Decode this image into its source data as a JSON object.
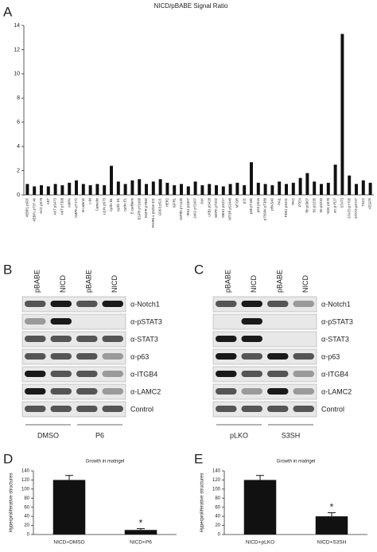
{
  "chart_data": [
    {
      "type": "bar",
      "label": "A",
      "title": "NICD/pBABE Signal Ratio",
      "color": "#111111",
      "categories": [
        "4EBP1 pS65",
        "4EBP1 pT37 46",
        "ACC pS79",
        "AKT",
        "AKT pS473",
        "AKT pT308",
        "AMPK",
        "AMPK pT172",
        "B-catenin",
        "c-kit",
        "Caveolin",
        "cJUN pS73",
        "cyclin B1",
        "cyclin D1",
        "cyclin E1",
        "E-cadherin",
        "EGFR pY1068",
        "EGFR pY992",
        "FKHRL1 pS318 321",
        "GSK3 pS21",
        "HER2",
        "IGFR1",
        "IGFRb pY1135",
        "IRS1 pS307",
        "JAK2 pY1007",
        "JNK",
        "LKB1 pS428",
        "MAPK pT202",
        "MEK1 pS217",
        "MTOR pS2448",
        "MTOR",
        "p21",
        "p38 pT180",
        "p53 pS15",
        "p70S6K pT389",
        "pRAS40",
        "PAI1",
        "PDK1 pS241",
        "PKC",
        "PTEN",
        "Rb pS807",
        "S6 pS235",
        "S6 pS240",
        "SGK pS78",
        "src pY527",
        "STAT3",
        "STAT3 pY705",
        "STAT3 pS727",
        "TSC2",
        "VEGFR"
      ],
      "values": [
        0.9,
        0.7,
        0.8,
        0.7,
        0.9,
        0.8,
        1.0,
        1.2,
        0.9,
        0.8,
        0.9,
        0.8,
        2.4,
        1.1,
        0.9,
        1.2,
        1.3,
        0.9,
        1.1,
        1.3,
        1.0,
        0.8,
        0.9,
        0.7,
        1.1,
        0.8,
        0.9,
        0.8,
        0.7,
        0.9,
        1.0,
        0.8,
        2.7,
        1.0,
        0.9,
        0.8,
        1.1,
        0.9,
        1.0,
        1.4,
        1.8,
        1.1,
        0.9,
        1.0,
        2.5,
        13.3,
        1.6,
        0.9,
        1.2,
        1.0
      ],
      "ylim": [
        0,
        14
      ],
      "yticks": [
        0,
        2,
        4,
        6,
        8,
        10,
        12,
        14
      ]
    },
    {
      "type": "bar",
      "label": "D",
      "title": "Growth in matrigel",
      "y_label": "Hyperproliferative structures",
      "color": "#111111",
      "categories": [
        "NICD+DMSO",
        "NICD+P6"
      ],
      "values": [
        120,
        10
      ],
      "errors": [
        10,
        3
      ],
      "annotation": "*",
      "ylim": [
        0,
        140
      ],
      "yticks": [
        0,
        20,
        40,
        60,
        80,
        100,
        120,
        140
      ]
    },
    {
      "type": "bar",
      "label": "E",
      "title": "Growth in matrigel",
      "y_label": "Hyperproliferative structures",
      "color": "#111111",
      "categories": [
        "NICD+pLKO",
        "NICD+S3SH"
      ],
      "values": [
        120,
        40
      ],
      "errors": [
        10,
        8
      ],
      "annotation": "*",
      "ylim": [
        0,
        140
      ],
      "yticks": [
        0,
        20,
        40,
        60,
        80,
        100,
        120,
        140
      ]
    }
  ],
  "blots": [
    {
      "label": "B",
      "lanes": [
        "pBABE",
        "NICD",
        "pBABE",
        "NICD"
      ],
      "rows": [
        "α-Notch1",
        "α-pSTAT3",
        "α-STAT3",
        "α-p63",
        "α-ITGB4",
        "α-LAMC2",
        "Control"
      ],
      "groups": [
        "DMSO",
        "P6"
      ]
    },
    {
      "label": "C",
      "lanes": [
        "pBABE",
        "NICD",
        "pBABE",
        "NICD"
      ],
      "rows": [
        "α-Notch1",
        "α-pSTAT3",
        "α-STAT3",
        "α-p63",
        "α-ITGB4",
        "α-LAMC2",
        "Control"
      ],
      "groups": [
        "pLKO",
        "S3SH"
      ]
    }
  ]
}
